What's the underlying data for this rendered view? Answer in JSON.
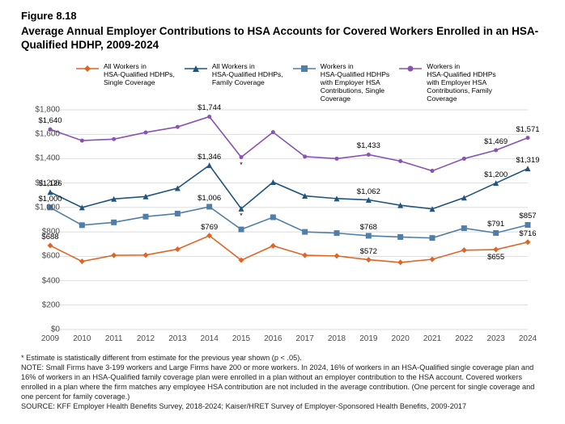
{
  "figure_label": "Figure 8.18",
  "title": "Average Annual Employer Contributions to HSA Accounts for Covered Workers Enrolled in an HSA-Qualified HDHP, 2009-2024",
  "chart": {
    "type": "line",
    "background_color": "#ffffff",
    "grid_color": "#d0cfcf",
    "axis_color": "#808080",
    "ylim": [
      0,
      1800
    ],
    "ytick_step": 200,
    "yticks": [
      0,
      200,
      400,
      600,
      800,
      1000,
      1200,
      1400,
      1600,
      1800
    ],
    "ytick_labels": [
      "$0",
      "$200",
      "$400",
      "$600",
      "$800",
      "$1,000",
      "$1,200",
      "$1,400",
      "$1,600",
      "$1,800"
    ],
    "years": [
      2009,
      2010,
      2011,
      2012,
      2013,
      2014,
      2015,
      2016,
      2017,
      2018,
      2019,
      2020,
      2021,
      2022,
      2023,
      2024
    ],
    "series": [
      {
        "id": "s0",
        "label": "All Workers in\nHSA-Qualified HDHPs,\nSingle Coverage",
        "color": "#e06524",
        "marker": "diamond",
        "values": [
          688,
          558,
          608,
          610,
          658,
          769,
          568,
          686,
          608,
          603,
          572,
          550,
          575,
          650,
          655,
          716
        ]
      },
      {
        "id": "s1",
        "label": "All Workers in\nHSA-Qualified HDHPs,\nFamily Coverage",
        "color": "#1f557f",
        "marker": "triangle",
        "values": [
          1126,
          1000,
          1070,
          1090,
          1158,
          1346,
          990,
          1208,
          1095,
          1073,
          1062,
          1018,
          988,
          1080,
          1200,
          1319
        ]
      },
      {
        "id": "s2",
        "label": "Workers in\nHSA-Qualified HDHPs\nwith Employer HSA\nContributions, Single\nCoverage",
        "color": "#4f7fa8",
        "marker": "square",
        "values": [
          1000,
          855,
          878,
          925,
          950,
          1006,
          820,
          920,
          800,
          790,
          768,
          758,
          750,
          830,
          791,
          857
        ]
      },
      {
        "id": "s3",
        "label": "Workers in\nHSA-Qualified HDHPs\nwith Employer HSA\nContributions, Family\nCoverage",
        "color": "#8a52b2",
        "marker": "circle",
        "values": [
          1640,
          1548,
          1560,
          1615,
          1660,
          1744,
          1412,
          1617,
          1417,
          1400,
          1433,
          1380,
          1300,
          1400,
          1469,
          1571
        ]
      }
    ],
    "point_labels": [
      {
        "text": "$1,640",
        "year": 2009,
        "value": 1640,
        "position": "above"
      },
      {
        "text": "$1,126",
        "year": 2009,
        "value": 1126,
        "position": "above"
      },
      {
        "text": "$1,000",
        "year": 2009,
        "value": 1000,
        "position": "above"
      },
      {
        "text": "$688",
        "year": 2009,
        "value": 688,
        "position": "above"
      },
      {
        "text": "$1,744",
        "year": 2014,
        "value": 1744,
        "position": "above"
      },
      {
        "text": "$1,346",
        "year": 2014,
        "value": 1346,
        "position": "above"
      },
      {
        "text": "$1,006",
        "year": 2014,
        "value": 1006,
        "position": "above"
      },
      {
        "text": "$769",
        "year": 2014,
        "value": 769,
        "position": "above"
      },
      {
        "text": "*",
        "year": 2015,
        "value": 1412,
        "position": "below"
      },
      {
        "text": "*",
        "year": 2015,
        "value": 990,
        "position": "below"
      },
      {
        "text": "$1,433",
        "year": 2019,
        "value": 1433,
        "position": "above"
      },
      {
        "text": "$1,062",
        "year": 2019,
        "value": 1062,
        "position": "above"
      },
      {
        "text": "$768",
        "year": 2019,
        "value": 768,
        "position": "above"
      },
      {
        "text": "$572",
        "year": 2019,
        "value": 572,
        "position": "above"
      },
      {
        "text": "$1,469",
        "year": 2023,
        "value": 1469,
        "position": "above"
      },
      {
        "text": "$1,200",
        "year": 2023,
        "value": 1200,
        "position": "above"
      },
      {
        "text": "$791",
        "year": 2023,
        "value": 791,
        "position": "above"
      },
      {
        "text": "$655",
        "year": 2023,
        "value": 655,
        "position": "below"
      },
      {
        "text": "$1,571",
        "year": 2024,
        "value": 1571,
        "position": "above"
      },
      {
        "text": "$1,319",
        "year": 2024,
        "value": 1319,
        "position": "above"
      },
      {
        "text": "$857",
        "year": 2024,
        "value": 857,
        "position": "above"
      },
      {
        "text": "$716",
        "year": 2024,
        "value": 716,
        "position": "above"
      }
    ],
    "marker_size": 5,
    "line_width": 1.6,
    "label_fontsize": 9.5,
    "tick_fontsize": 10
  },
  "notes": {
    "asterisk": "* Estimate is statistically different from estimate for the previous year shown (p < .05).",
    "note": "NOTE: Small Firms have 3-199 workers and Large Firms have 200 or more workers. In 2024, 16% of workers in an HSA-Qualified single coverage plan and 16% of workers in an HSA-Qualified family coverage plan were enrolled in a plan without an employer contribution to the HSA account. Covered workers enrolled in a plan where the firm matches any employee HSA contribution are not included in the average contribution. (One percent for single coverage and one percent for family coverage.)",
    "source": "SOURCE: KFF Employer Health Benefits Survey, 2018-2024; Kaiser/HRET Survey of Employer-Sponsored Health Benefits, 2009-2017"
  }
}
